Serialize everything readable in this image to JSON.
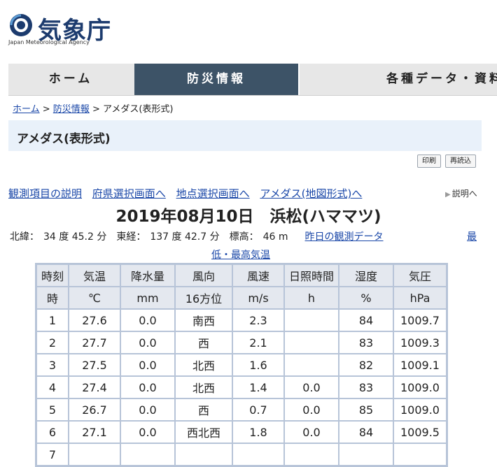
{
  "header": {
    "org_name": "気象庁",
    "org_sub": "Japan Meteorological Agency"
  },
  "nav": {
    "home": "ホーム",
    "bosai": "防災情報",
    "data": "各種データ・資料"
  },
  "breadcrumb": {
    "home": "ホーム",
    "sep1": " > ",
    "bosai": "防災情報",
    "sep2": " > ",
    "current": "アメダス(表形式)"
  },
  "page_title": "アメダス(表形式)",
  "buttons": {
    "print": "印刷",
    "reload": "再読込"
  },
  "links": {
    "item_explanation": "観測項目の説明",
    "prefecture_select": "府県選択画面へ",
    "point_select": "地点選択画面へ",
    "amedas_map": "アメダス(地図形式)へ",
    "explain": "説明へ"
  },
  "station_title": "2019年08月10日　浜松(ハママツ)",
  "coords": {
    "lat_label": "北緯：",
    "lat_value": "34 度 45.2 分",
    "lon_label": "東経：",
    "lon_value": "137 度 42.7 分",
    "alt_label": "標高：",
    "alt_value": "46 m",
    "yesterday": "昨日の観測データ",
    "low_high_1": "最",
    "low_high_2": "低・最高気温"
  },
  "table": {
    "headers": [
      "時刻",
      "気温",
      "降水量",
      "風向",
      "風速",
      "日照時間",
      "湿度",
      "気圧"
    ],
    "units": [
      "時",
      "℃",
      "mm",
      "16方位",
      "m/s",
      "h",
      "%",
      "hPa"
    ],
    "rows": [
      [
        "1",
        "27.6",
        "0.0",
        "南西",
        "2.3",
        "",
        "84",
        "1009.7"
      ],
      [
        "2",
        "27.7",
        "0.0",
        "西",
        "2.1",
        "",
        "83",
        "1009.3"
      ],
      [
        "3",
        "27.5",
        "0.0",
        "北西",
        "1.6",
        "",
        "82",
        "1009.1"
      ],
      [
        "4",
        "27.4",
        "0.0",
        "北西",
        "1.4",
        "0.0",
        "83",
        "1009.0"
      ],
      [
        "5",
        "26.7",
        "0.0",
        "西",
        "0.7",
        "0.0",
        "85",
        "1009.0"
      ],
      [
        "6",
        "27.1",
        "0.0",
        "西北西",
        "1.8",
        "0.0",
        "84",
        "1009.5"
      ],
      [
        "7",
        "",
        "",
        "",
        "",
        "",
        "",
        ""
      ]
    ]
  },
  "colors": {
    "nav_active": "#3d5367",
    "link": "#1a47a8",
    "table_border": "#b7c4d8",
    "title_bar": "#e9f1fa"
  }
}
